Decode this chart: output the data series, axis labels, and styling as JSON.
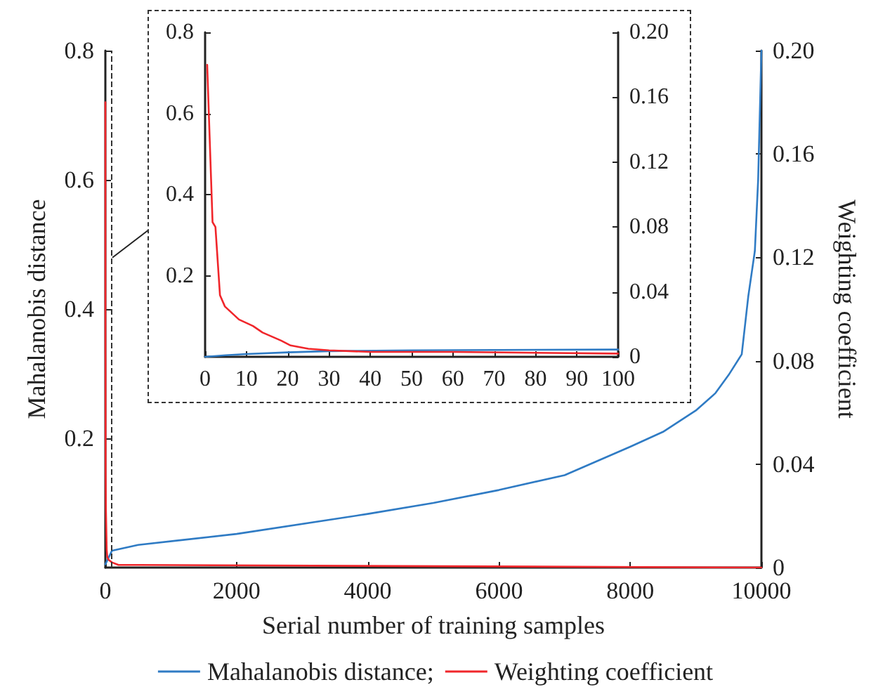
{
  "chart_data": [
    {
      "type": "line",
      "xlabel": "Serial number of training samples",
      "ylabel": "Mahalanobis distance",
      "y2label": "Weighting coefficient",
      "xlim": [
        0,
        10000
      ],
      "xticks": [
        0,
        2000,
        4000,
        6000,
        8000,
        10000
      ],
      "ylim": [
        0,
        0.8
      ],
      "yticks": [
        0.2,
        0.4,
        0.6,
        0.8
      ],
      "y2lim": [
        0,
        0.2
      ],
      "y2ticks": [
        0,
        0.04,
        0.08,
        0.12,
        0.16,
        {
          "value": 0.2,
          "label": "0.20"
        }
      ],
      "grid": false,
      "legend": "bottom",
      "ref_lines": [
        {
          "axis": "x",
          "value": 100,
          "line_style": "dashed",
          "color": "#333333"
        }
      ],
      "line_style": "solid",
      "marker": "none",
      "series": [
        {
          "name": "Mahalanobis distance;",
          "color": "#2f7bc4",
          "x": [
            0,
            100,
            500,
            2000,
            4000,
            5000,
            6000,
            7000,
            8000,
            8500,
            9000,
            9300,
            9500,
            9700,
            9800,
            9900,
            9950,
            10000
          ],
          "values": [
            0.005,
            0.026,
            0.035,
            0.052,
            0.083,
            0.1,
            0.12,
            0.143,
            0.187,
            0.21,
            0.243,
            0.27,
            0.298,
            0.33,
            0.42,
            0.49,
            0.6,
            0.8
          ]
        },
        {
          "name": "Weighting coefficient",
          "color": "#f0262b",
          "axis": "y2",
          "x": [
            0,
            1,
            2,
            4,
            8,
            14,
            20,
            30,
            50,
            100,
            200,
            500,
            10000
          ],
          "values": [
            0.18,
            0.083,
            0.08,
            0.038,
            0.023,
            0.015,
            0.007,
            0.004,
            0.003,
            0.002,
            0.001,
            0.001,
            0
          ]
        }
      ]
    },
    {
      "type": "line",
      "xlim": [
        0,
        100
      ],
      "xticks": [
        0,
        10,
        20,
        30,
        40,
        50,
        60,
        70,
        80,
        90,
        100
      ],
      "ylim": [
        0,
        0.8
      ],
      "yticks": [
        0.2,
        0.4,
        0.6,
        0.8
      ],
      "y2lim": [
        0,
        0.2
      ],
      "y2ticks": [
        0,
        0.04,
        0.08,
        0.12,
        0.16,
        {
          "value": 0.2,
          "label": "0.20"
        }
      ],
      "grid": false,
      "legend": false,
      "line_style": "solid",
      "marker": "none",
      "series": [
        {
          "color": "#2f7bc4",
          "x": [
            0,
            5,
            10,
            20,
            30,
            50,
            70,
            100
          ],
          "values": [
            0,
            0.004,
            0.007,
            0.011,
            0.014,
            0.016,
            0.017,
            0.018
          ]
        },
        {
          "color": "#f0262b",
          "axis": "y2",
          "x": [
            0.5,
            1.8,
            2.5,
            3.6,
            4.8,
            8.2,
            11.6,
            13.9,
            18.4,
            20.7,
            25,
            30,
            40,
            60,
            100
          ],
          "values": [
            0.18,
            0.083,
            0.08,
            0.038,
            0.031,
            0.023,
            0.019,
            0.015,
            0.01,
            0.007,
            0.005,
            0.004,
            0.003,
            0.003,
            0.002
          ]
        }
      ]
    }
  ]
}
